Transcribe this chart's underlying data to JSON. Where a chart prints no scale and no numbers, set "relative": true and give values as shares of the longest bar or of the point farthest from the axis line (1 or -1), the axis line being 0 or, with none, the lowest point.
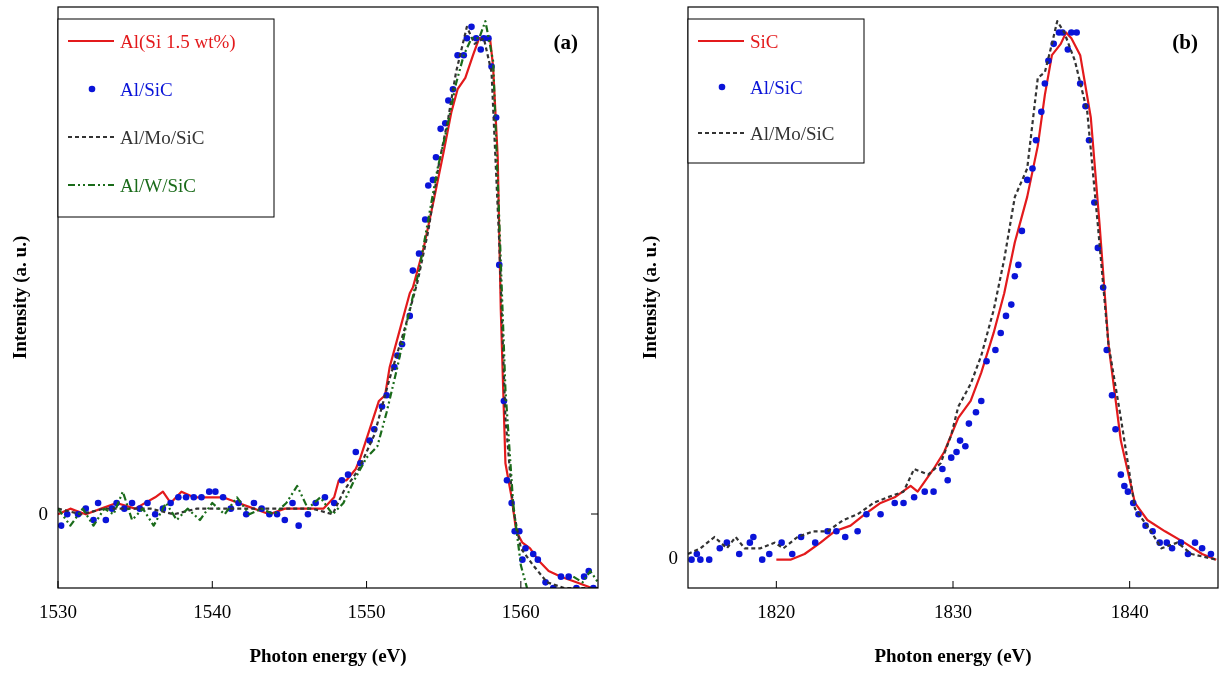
{
  "chart_data": [
    {
      "type": "line",
      "relative": true,
      "xlabel": "Photon energy (eV)",
      "ylabel": "Intensity (a. u.)",
      "xlim": [
        1530,
        1565
      ],
      "xticks": [
        1530,
        1540,
        1550,
        1560
      ],
      "legend": "top left",
      "grid": false,
      "annotations": [
        "(a)",
        "0"
      ],
      "series": [
        {
          "name": "Al(Si 1.5 wt%)",
          "type": "line",
          "line_style": "solid",
          "color": "#e31a1c",
          "x": [
            1530,
            1530.8,
            1531.8,
            1532.8,
            1533.8,
            1535.0,
            1536.3,
            1536.8,
            1537.3,
            1538.0,
            1538.8,
            1539.8,
            1540.7,
            1541.7,
            1542.7,
            1543.7,
            1544.7,
            1546.2,
            1547.2,
            1547.9,
            1548.2,
            1548.7,
            1549.3,
            1549.6,
            1550.2,
            1550.8,
            1551.2,
            1551.5,
            1552.0,
            1552.8,
            1553.0,
            1553.7,
            1554.4,
            1555.0,
            1555.5,
            1555.9,
            1556.4,
            1556.9,
            1557.3,
            1557.6,
            1558.0,
            1558.2,
            1558.5,
            1558.7,
            1559.0,
            1559.4,
            1559.7,
            1560.1,
            1560.6,
            1561.1,
            1561.8,
            1562.6,
            1563.6,
            1564.6,
            1565
          ],
          "values": [
            0.13,
            0.14,
            0.13,
            0.14,
            0.15,
            0.14,
            0.16,
            0.17,
            0.15,
            0.17,
            0.16,
            0.16,
            0.16,
            0.15,
            0.14,
            0.13,
            0.14,
            0.14,
            0.14,
            0.16,
            0.19,
            0.19,
            0.21,
            0.23,
            0.28,
            0.33,
            0.34,
            0.39,
            0.44,
            0.52,
            0.53,
            0.6,
            0.69,
            0.77,
            0.84,
            0.88,
            0.9,
            0.94,
            0.97,
            0.97,
            0.97,
            0.92,
            0.76,
            0.49,
            0.22,
            0.16,
            0.1,
            0.08,
            0.07,
            0.05,
            0.03,
            0.02,
            0.01,
            0.0,
            0.0
          ]
        },
        {
          "name": "Al/SiC",
          "type": "scatter",
          "marker": "circle",
          "color": "#0a14d8",
          "x": [
            1530.2,
            1530.6,
            1531.3,
            1531.8,
            1532.3,
            1532.6,
            1533.1,
            1533.5,
            1533.8,
            1534.3,
            1534.8,
            1535.3,
            1535.8,
            1536.3,
            1536.8,
            1537.3,
            1537.8,
            1538.3,
            1538.8,
            1539.3,
            1539.8,
            1540.2,
            1540.7,
            1541.2,
            1541.7,
            1542.2,
            1542.7,
            1543.2,
            1543.7,
            1544.2,
            1544.7,
            1545.2,
            1545.6,
            1546.2,
            1546.7,
            1547.3,
            1547.9,
            1548.4,
            1548.8,
            1549.3,
            1549.6,
            1550.2,
            1550.5,
            1551.0,
            1551.3,
            1551.8,
            1552.0,
            1552.3,
            1552.8,
            1553.0,
            1553.4,
            1553.8,
            1554.0,
            1554.3,
            1554.5,
            1554.8,
            1555.1,
            1555.3,
            1555.6,
            1555.9,
            1556.3,
            1556.5,
            1556.8,
            1557.1,
            1557.4,
            1557.6,
            1557.9,
            1558.1,
            1558.4,
            1558.6,
            1558.9,
            1559.1,
            1559.4,
            1559.6,
            1559.9,
            1560.1,
            1560.3,
            1560.8,
            1561.1,
            1561.6,
            1562.1,
            1562.6,
            1563.1,
            1563.6,
            1564.1,
            1564.4,
            1564.7
          ],
          "values": [
            0.11,
            0.13,
            0.13,
            0.14,
            0.12,
            0.15,
            0.12,
            0.14,
            0.15,
            0.14,
            0.15,
            0.14,
            0.15,
            0.13,
            0.14,
            0.15,
            0.16,
            0.16,
            0.16,
            0.16,
            0.17,
            0.17,
            0.16,
            0.14,
            0.15,
            0.13,
            0.15,
            0.14,
            0.13,
            0.13,
            0.12,
            0.15,
            0.11,
            0.13,
            0.15,
            0.16,
            0.15,
            0.19,
            0.2,
            0.24,
            0.22,
            0.26,
            0.28,
            0.32,
            0.34,
            0.39,
            0.41,
            0.43,
            0.48,
            0.56,
            0.59,
            0.65,
            0.71,
            0.72,
            0.76,
            0.81,
            0.82,
            0.86,
            0.88,
            0.94,
            0.94,
            0.97,
            0.99,
            0.97,
            0.95,
            0.97,
            0.97,
            0.92,
            0.83,
            0.57,
            0.33,
            0.19,
            0.15,
            0.1,
            0.1,
            0.05,
            0.07,
            0.06,
            0.05,
            0.01,
            0.0,
            0.02,
            0.02,
            0.0,
            0.02,
            0.03,
            0.0
          ]
        },
        {
          "name": "Al/Mo/SiC",
          "type": "line",
          "line_style": "dashed",
          "color": "#333333",
          "x": [
            1530,
            1531.5,
            1533,
            1534.5,
            1536,
            1537.5,
            1539,
            1540.5,
            1542,
            1543.5,
            1545,
            1546.5,
            1547.8,
            1548.5,
            1549.5,
            1550.5,
            1551.5,
            1552.5,
            1553.3,
            1554.0,
            1554.7,
            1555.3,
            1555.8,
            1556.5,
            1557.0,
            1557.6,
            1558.1,
            1558.6,
            1559.0,
            1559.5,
            1560.0,
            1560.8,
            1561.7,
            1562.8,
            1564,
            1565
          ],
          "values": [
            0.14,
            0.13,
            0.14,
            0.14,
            0.14,
            0.13,
            0.14,
            0.14,
            0.14,
            0.14,
            0.14,
            0.14,
            0.13,
            0.17,
            0.21,
            0.27,
            0.37,
            0.46,
            0.54,
            0.63,
            0.75,
            0.83,
            0.91,
            0.99,
            0.96,
            0.97,
            0.91,
            0.61,
            0.3,
            0.14,
            0.07,
            0.04,
            0.01,
            0.0,
            0.0,
            0.0
          ]
        },
        {
          "name": "Al/W/SiC",
          "type": "line",
          "line_style": "dotted",
          "color": "#1a6b1a",
          "x": [
            1530,
            1530.8,
            1531.6,
            1532.3,
            1533,
            1533.6,
            1534.2,
            1534.8,
            1535.5,
            1536.2,
            1537,
            1537.7,
            1538.4,
            1539.2,
            1540,
            1540.8,
            1541.6,
            1542.4,
            1543.2,
            1544,
            1544.8,
            1545.5,
            1546.2,
            1547,
            1547.8,
            1548.5,
            1549.2,
            1550,
            1550.7,
            1551.3,
            1552,
            1552.7,
            1553.4,
            1554.0,
            1554.6,
            1555.2,
            1555.8,
            1556.3,
            1556.8,
            1557.3,
            1557.7,
            1558.2,
            1558.6,
            1559.0,
            1559.5,
            1560.0,
            1560.4,
            1562,
            1563.4,
            1564,
            1564.5,
            1565
          ],
          "values": [
            0.14,
            0.11,
            0.14,
            0.11,
            0.14,
            0.13,
            0.17,
            0.12,
            0.14,
            0.11,
            0.15,
            0.12,
            0.14,
            0.12,
            0.15,
            0.13,
            0.16,
            0.13,
            0.14,
            0.13,
            0.15,
            0.18,
            0.14,
            0.16,
            0.13,
            0.15,
            0.19,
            0.23,
            0.25,
            0.31,
            0.39,
            0.48,
            0.56,
            0.65,
            0.74,
            0.81,
            0.89,
            0.94,
            0.97,
            0.97,
            1.0,
            0.93,
            0.65,
            0.35,
            0.15,
            0.04,
            0.0,
            null,
            0.02,
            0.01,
            0.03,
            0.01
          ]
        }
      ]
    },
    {
      "type": "line",
      "relative": true,
      "xlabel": "Photon energy (eV)",
      "ylabel": "Intensity (a. u.)",
      "xlim": [
        1815,
        1845
      ],
      "xticks": [
        1820,
        1830,
        1840
      ],
      "legend": "top left",
      "grid": false,
      "annotations": [
        "(b)",
        "0"
      ],
      "series": [
        {
          "name": "SiC",
          "type": "line",
          "line_style": "solid",
          "color": "#e31a1c",
          "x": [
            1820.0,
            1820.8,
            1821.6,
            1822.5,
            1823.3,
            1824.2,
            1825.0,
            1825.9,
            1826.7,
            1827.6,
            1828.0,
            1828.9,
            1829.5,
            1830.3,
            1831.0,
            1831.6,
            1832.3,
            1832.9,
            1833.5,
            1834.2,
            1834.8,
            1835.2,
            1835.6,
            1836.1,
            1836.4,
            1836.7,
            1837.2,
            1837.8,
            1838.3,
            1838.8,
            1839.5,
            1840.3,
            1841.0,
            1842.0,
            1843.1,
            1844.1,
            1844.9
          ],
          "values": [
            0.05,
            0.05,
            0.06,
            0.08,
            0.1,
            0.11,
            0.13,
            0.15,
            0.16,
            0.18,
            0.17,
            0.21,
            0.24,
            0.3,
            0.33,
            0.38,
            0.45,
            0.52,
            0.61,
            0.69,
            0.78,
            0.87,
            0.94,
            0.96,
            0.98,
            0.97,
            0.94,
            0.83,
            0.64,
            0.43,
            0.26,
            0.15,
            0.12,
            0.1,
            0.08,
            0.06,
            0.05
          ]
        },
        {
          "name": "Al/SiC",
          "type": "scatter",
          "marker": "circle",
          "color": "#0a14d8",
          "x": [
            1815.2,
            1815.5,
            1815.7,
            1816.2,
            1816.8,
            1817.2,
            1817.9,
            1818.5,
            1818.7,
            1819.2,
            1819.6,
            1820.3,
            1820.9,
            1821.4,
            1822.2,
            1822.9,
            1823.4,
            1823.9,
            1824.6,
            1825.1,
            1825.9,
            1826.7,
            1827.2,
            1827.8,
            1828.4,
            1828.9,
            1829.4,
            1829.7,
            1829.9,
            1830.2,
            1830.4,
            1830.7,
            1830.9,
            1831.3,
            1831.6,
            1831.9,
            1832.4,
            1832.7,
            1833.0,
            1833.3,
            1833.5,
            1833.7,
            1833.9,
            1834.2,
            1834.5,
            1834.7,
            1835.0,
            1835.2,
            1835.4,
            1835.7,
            1836.0,
            1836.2,
            1836.5,
            1836.7,
            1837.0,
            1837.2,
            1837.5,
            1837.7,
            1838.0,
            1838.2,
            1838.5,
            1838.7,
            1839.0,
            1839.2,
            1839.5,
            1839.7,
            1839.9,
            1840.2,
            1840.5,
            1840.9,
            1841.3,
            1841.7,
            1842.1,
            1842.4,
            1842.9,
            1843.3,
            1843.7,
            1844.1,
            1844.6
          ],
          "values": [
            0.05,
            0.06,
            0.05,
            0.05,
            0.07,
            0.08,
            0.06,
            0.08,
            0.09,
            0.05,
            0.06,
            0.08,
            0.06,
            0.09,
            0.08,
            0.1,
            0.1,
            0.09,
            0.1,
            0.13,
            0.13,
            0.15,
            0.15,
            0.16,
            0.17,
            0.17,
            0.21,
            0.19,
            0.23,
            0.24,
            0.26,
            0.25,
            0.29,
            0.31,
            0.33,
            0.4,
            0.42,
            0.45,
            0.48,
            0.5,
            0.55,
            0.57,
            0.63,
            0.72,
            0.74,
            0.79,
            0.84,
            0.89,
            0.93,
            0.96,
            0.98,
            0.98,
            0.95,
            0.98,
            0.98,
            0.89,
            0.85,
            0.79,
            0.68,
            0.6,
            0.53,
            0.42,
            0.34,
            0.28,
            0.2,
            0.18,
            0.17,
            0.15,
            0.13,
            0.11,
            0.1,
            0.08,
            0.08,
            0.07,
            0.08,
            0.06,
            0.08,
            0.07,
            0.06
          ]
        },
        {
          "name": "Al/Mo/SiC",
          "type": "line",
          "line_style": "dashed",
          "color": "#333333",
          "x": [
            1815.0,
            1815.7,
            1816.5,
            1817.2,
            1817.7,
            1818.2,
            1819.1,
            1819.9,
            1820.4,
            1821.2,
            1822.1,
            1822.9,
            1823.8,
            1824.6,
            1825.5,
            1826.3,
            1827.2,
            1827.8,
            1828.6,
            1829.3,
            1829.9,
            1830.3,
            1831.0,
            1831.6,
            1832.3,
            1832.9,
            1833.5,
            1834.2,
            1834.8,
            1835.2,
            1835.6,
            1835.9,
            1836.3,
            1836.9,
            1837.6,
            1838.2,
            1838.8,
            1839.5,
            1840.3,
            1841.2,
            1841.8,
            1842.7,
            1843.5,
            1844.9
          ],
          "values": [
            0.06,
            0.07,
            0.09,
            0.07,
            0.09,
            0.07,
            0.07,
            0.08,
            0.07,
            0.09,
            0.1,
            0.1,
            0.12,
            0.13,
            0.15,
            0.16,
            0.17,
            0.21,
            0.2,
            0.22,
            0.27,
            0.32,
            0.36,
            0.41,
            0.49,
            0.58,
            0.69,
            0.74,
            0.9,
            0.91,
            0.96,
            1.0,
            0.98,
            0.93,
            0.84,
            0.64,
            0.43,
            0.3,
            0.14,
            0.1,
            0.07,
            0.08,
            0.06,
            0.05
          ]
        }
      ]
    }
  ]
}
